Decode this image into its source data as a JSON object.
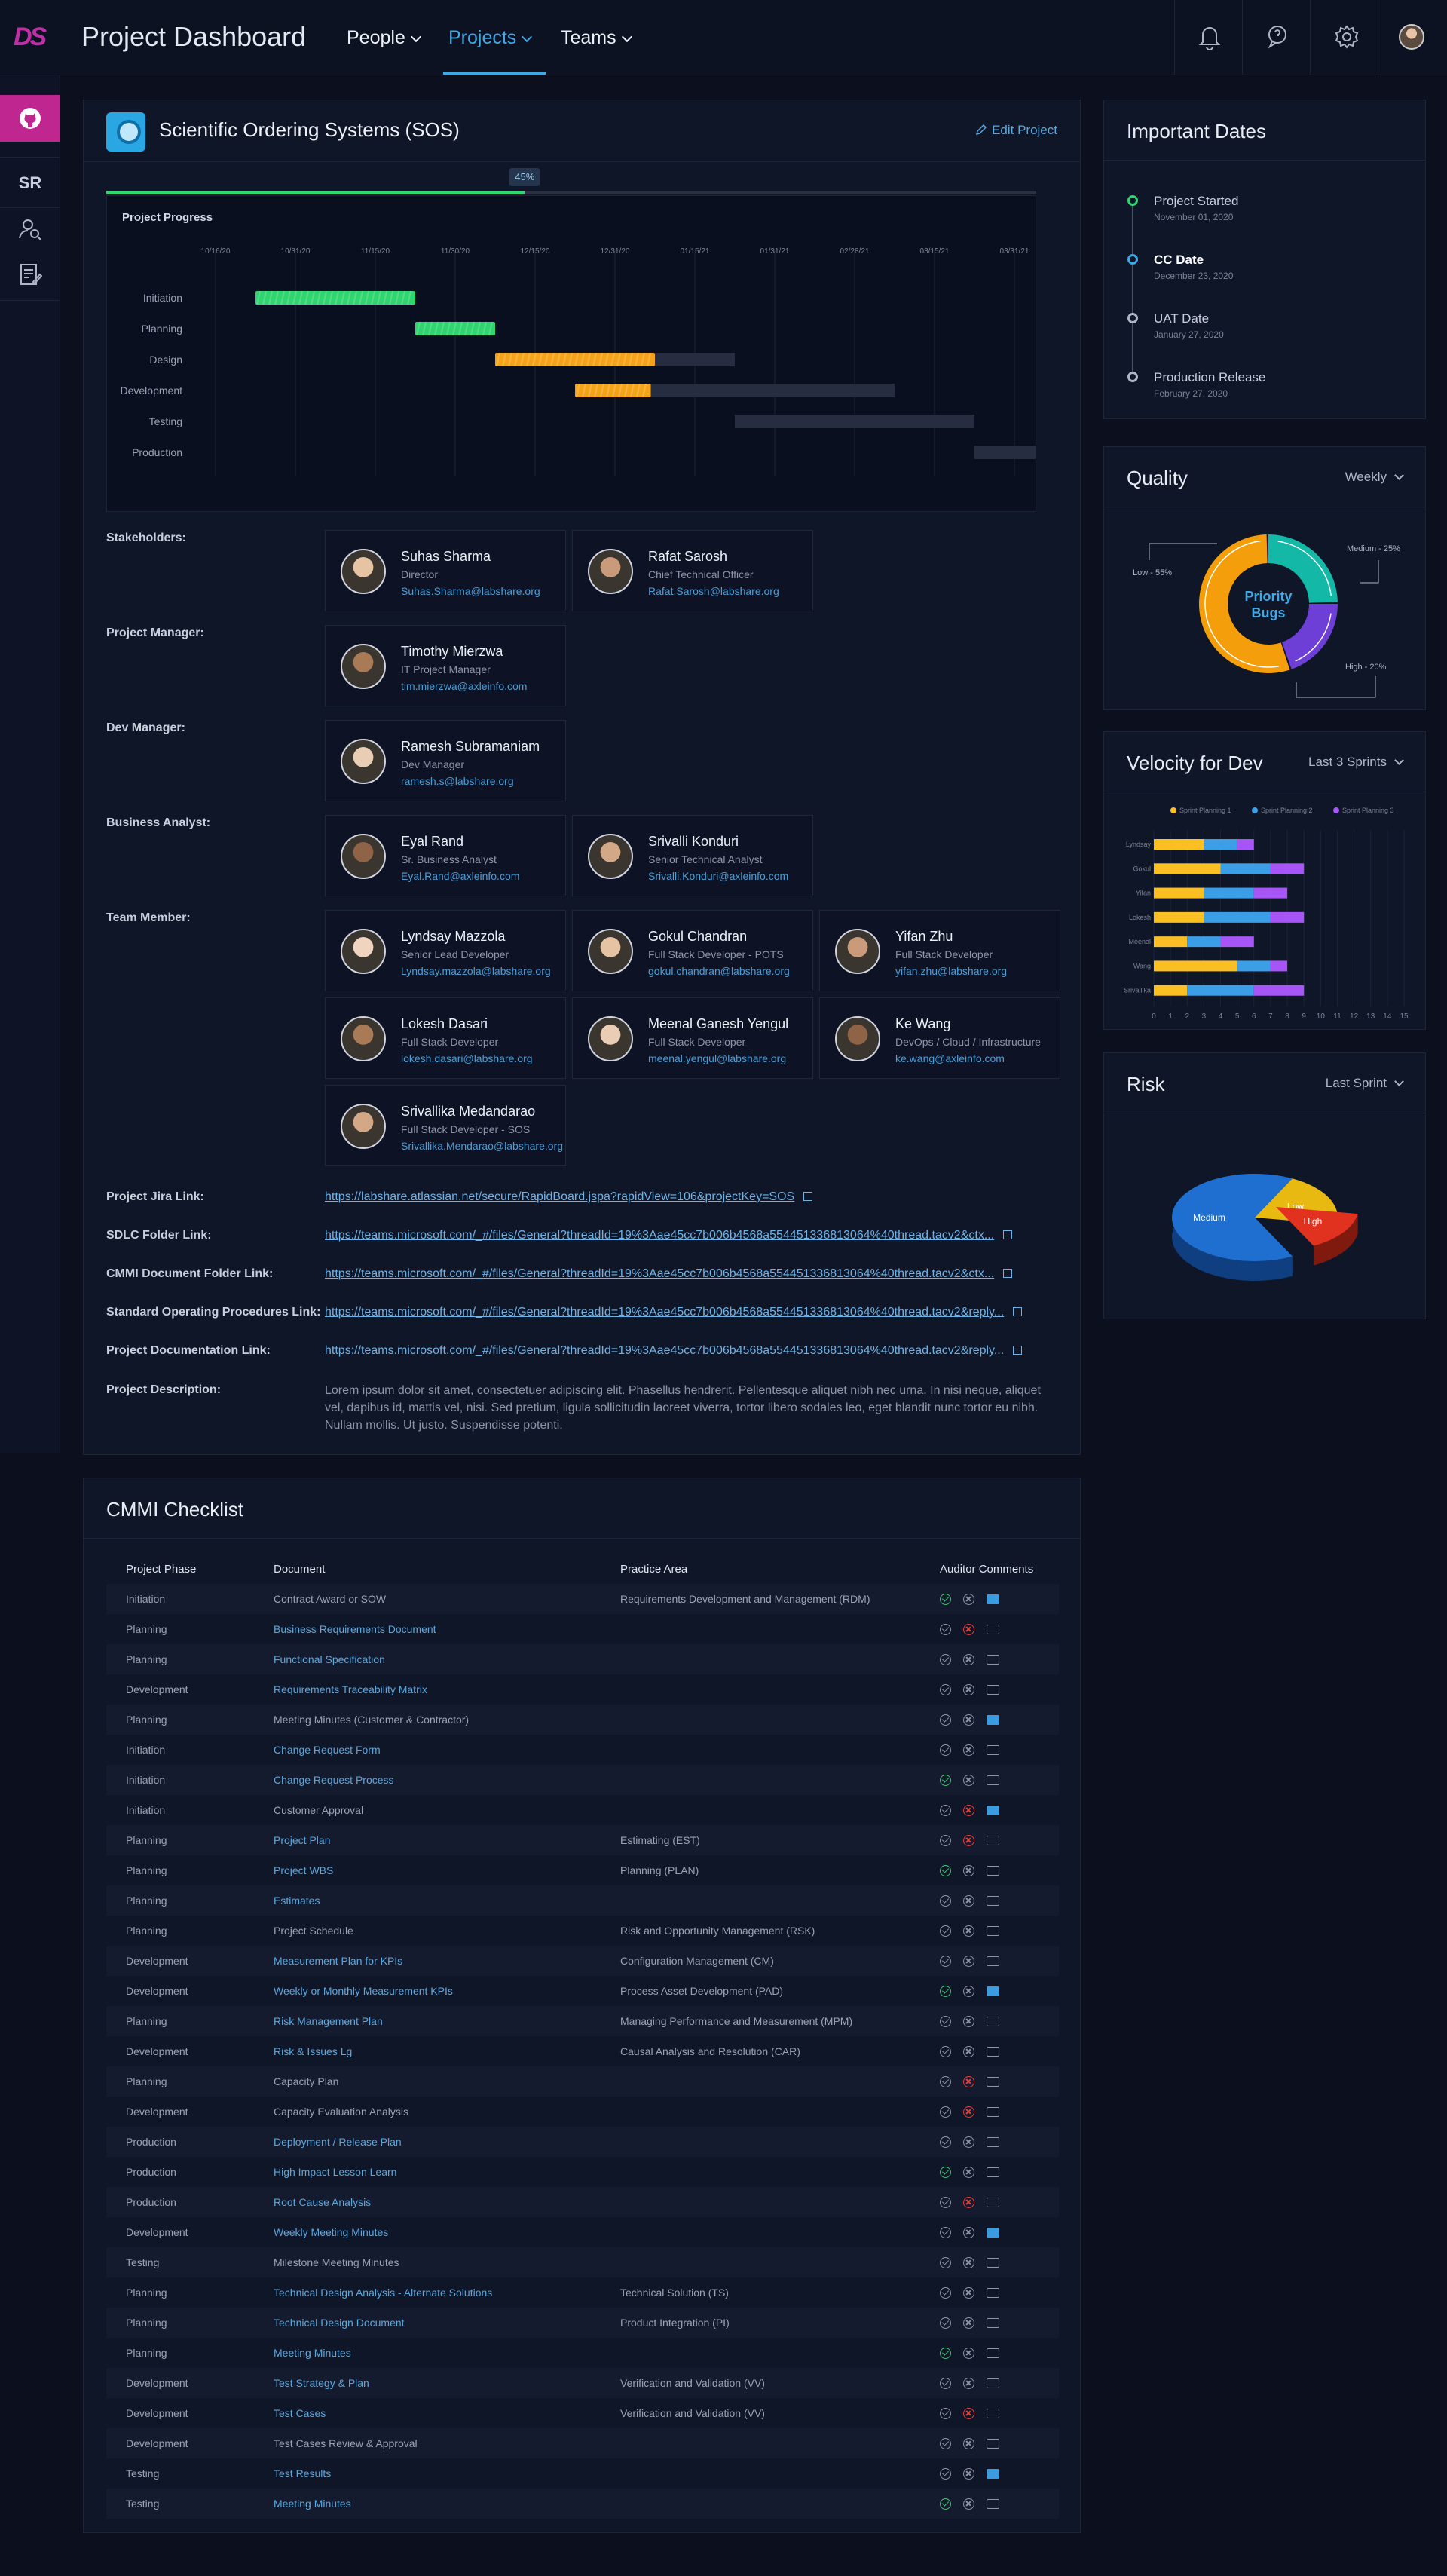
{
  "app": {
    "logo": "DS",
    "title": "Project Dashboard"
  },
  "nav": [
    {
      "label": "People",
      "active": false
    },
    {
      "label": "Projects",
      "active": true
    },
    {
      "label": "Teams",
      "active": false
    }
  ],
  "header_icons": [
    "bell-icon",
    "chat-icon",
    "gear-icon",
    "user-avatar"
  ],
  "sidebar": {
    "initials": "SR",
    "items": [
      "github-icon",
      "user-search-icon",
      "document-edit-icon"
    ]
  },
  "project": {
    "title": "Scientific Ordering Systems (SOS)",
    "edit_label": "Edit Project",
    "progress_percent": 45,
    "progress_label": "45%"
  },
  "gantt": {
    "title": "Project Progress",
    "dates": [
      "10/16/20",
      "10/31/20",
      "11/15/20",
      "11/30/20",
      "12/15/20",
      "12/31/20",
      "01/15/21",
      "01/31/21",
      "02/28/21",
      "03/15/21",
      "03/31/21"
    ],
    "phases": [
      {
        "name": "Initiation",
        "start": 0.5,
        "done": 2.0,
        "planned": 0,
        "status": "complete"
      },
      {
        "name": "Planning",
        "start": 2.5,
        "done": 1.0,
        "planned": 0,
        "status": "complete"
      },
      {
        "name": "Design",
        "start": 3.5,
        "done": 2.0,
        "planned": 1.0,
        "status": "in-progress"
      },
      {
        "name": "Development",
        "start": 4.5,
        "done": 0.95,
        "planned": 3.05,
        "status": "in-progress"
      },
      {
        "name": "Testing",
        "start": 6.5,
        "done": 0,
        "planned": 3.0,
        "status": "not-started"
      },
      {
        "name": "Production",
        "start": 9.5,
        "done": 0,
        "planned": 0.9,
        "status": "not-started"
      }
    ]
  },
  "sections": {
    "stakeholders": "Stakeholders:",
    "project_manager": "Project Manager:",
    "dev_manager": "Dev Manager:",
    "business_analyst": "Business Analyst:",
    "team_member": "Team Member:"
  },
  "people": {
    "stakeholders": [
      {
        "name": "Suhas Sharma",
        "role": "Director",
        "email": "Suhas.Sharma@labshare.org"
      },
      {
        "name": "Rafat Sarosh",
        "role": "Chief Technical Officer",
        "email": "Rafat.Sarosh@labshare.org"
      }
    ],
    "project_manager": [
      {
        "name": "Timothy Mierzwa",
        "role": "IT Project Manager",
        "email": "tim.mierzwa@axleinfo.com"
      }
    ],
    "dev_manager": [
      {
        "name": "Ramesh Subramaniam",
        "role": "Dev Manager",
        "email": "ramesh.s@labshare.org"
      }
    ],
    "business_analyst": [
      {
        "name": "Eyal Rand",
        "role": "Sr. Business Analyst",
        "email": "Eyal.Rand@axleinfo.com"
      },
      {
        "name": "Srivalli Konduri",
        "role": "Senior Technical Analyst",
        "email": "Srivalli.Konduri@axleinfo.com"
      }
    ],
    "team": [
      {
        "name": "Lyndsay Mazzola",
        "role": "Senior Lead Developer",
        "email": "Lyndsay.mazzola@labshare.org"
      },
      {
        "name": "Gokul Chandran",
        "role": "Full Stack Developer - POTS",
        "email": "gokul.chandran@labshare.org"
      },
      {
        "name": "Yifan Zhu",
        "role": "Full Stack Developer",
        "email": "yifan.zhu@labshare.org"
      },
      {
        "name": "Lokesh Dasari",
        "role": "Full Stack Developer",
        "email": "lokesh.dasari@labshare.org"
      },
      {
        "name": "Meenal Ganesh Yengul",
        "role": "Full Stack Developer",
        "email": "meenal.yengul@labshare.org"
      },
      {
        "name": "Ke Wang",
        "role": "DevOps / Cloud / Infrastructure",
        "email": "ke.wang@axleinfo.com"
      },
      {
        "name": "Srivallika Medandarao",
        "role": "Full Stack Developer - SOS",
        "email": "Srivallika.Mendarao@labshare.org"
      }
    ]
  },
  "links": [
    {
      "label": "Project Jira Link:",
      "url": "https://labshare.atlassian.net/secure/RapidBoard.jspa?rapidView=106&projectKey=SOS"
    },
    {
      "label": "SDLC Folder Link:",
      "url": "https://teams.microsoft.com/_#/files/General?threadId=19%3Aae45cc7b006b4568a554451336813064%40thread.tacv2&ctx..."
    },
    {
      "label": "CMMI Document Folder Link:",
      "url": "https://teams.microsoft.com/_#/files/General?threadId=19%3Aae45cc7b006b4568a554451336813064%40thread.tacv2&ctx..."
    },
    {
      "label": "Standard Operating Procedures Link:",
      "url": "https://teams.microsoft.com/_#/files/General?threadId=19%3Aae45cc7b006b4568a554451336813064%40thread.tacv2&reply..."
    },
    {
      "label": "Project Documentation Link:",
      "url": "https://teams.microsoft.com/_#/files/General?threadId=19%3Aae45cc7b006b4568a554451336813064%40thread.tacv2&reply..."
    }
  ],
  "description": {
    "label": "Project Description:",
    "text": "Lorem ipsum dolor sit amet, consectetuer adipiscing elit. Phasellus hendrerit. Pellentesque aliquet nibh nec urna. In nisi neque, aliquet vel, dapibus id, mattis vel, nisi. Sed pretium, ligula sollicitudin laoreet viverra, tortor libero sodales leo, eget blandit nunc tortor eu nibh. Nullam mollis. Ut justo. Suspendisse potenti."
  },
  "important_dates": {
    "title": "Important Dates",
    "items": [
      {
        "title": "Project Started",
        "date": "November 01, 2020",
        "state": "done"
      },
      {
        "title": "CC Date",
        "date": "December 23, 2020",
        "state": "current"
      },
      {
        "title": "UAT Date",
        "date": "January 27, 2020",
        "state": "upcoming"
      },
      {
        "title": "Production Release",
        "date": "February 27, 2020",
        "state": "upcoming"
      }
    ]
  },
  "quality": {
    "title": "Quality",
    "dropdown": "Weekly",
    "center_label": "Priority Bugs",
    "slices": [
      {
        "name": "Low",
        "value": 55,
        "label": "Low - 55%",
        "color": "#f59e0b"
      },
      {
        "name": "Medium",
        "value": 25,
        "label": "Medium - 25%",
        "color": "#14b8a6"
      },
      {
        "name": "High",
        "value": 20,
        "label": "High - 20%",
        "color": "#6d3fd6"
      }
    ]
  },
  "velocity": {
    "title": "Velocity for Dev",
    "dropdown": "Last 3 Sprints"
  },
  "risk": {
    "title": "Risk",
    "dropdown": "Last Sprint"
  },
  "chart_data": [
    {
      "type": "bar",
      "stacked": true,
      "orientation": "horizontal",
      "categories": [
        "Lyndsay",
        "Gokul",
        "Yifan",
        "Lokesh",
        "Meenal",
        "Wang",
        "Srivallika"
      ],
      "series": [
        {
          "name": "Sprint Planning 1",
          "color": "#fbbf24",
          "values": [
            3,
            4,
            3,
            3,
            2,
            5,
            2
          ]
        },
        {
          "name": "Sprint Planning 2",
          "color": "#3b9fe8",
          "values": [
            2,
            3,
            3,
            4,
            2,
            2,
            4
          ]
        },
        {
          "name": "Sprint Planning 3",
          "color": "#a855f7",
          "values": [
            1,
            2,
            2,
            2,
            2,
            1,
            3
          ]
        }
      ],
      "xlim": [
        0,
        15
      ],
      "xticks": [
        0,
        1,
        2,
        3,
        4,
        5,
        6,
        7,
        8,
        9,
        10,
        11,
        12,
        13,
        14,
        15
      ],
      "legend": "top",
      "grid": true
    },
    {
      "type": "pie",
      "style": "3d",
      "slices": [
        {
          "label": "Medium",
          "value": 65,
          "color": "#1e6fd0"
        },
        {
          "label": "Low",
          "value": 20,
          "color": "#e8b910"
        },
        {
          "label": "High",
          "value": 15,
          "color": "#e0321e"
        }
      ]
    }
  ],
  "checklist": {
    "title": "CMMI Checklist",
    "columns": [
      "Project Phase",
      "Document",
      "Practice Area",
      "Auditor Comments"
    ],
    "rows": [
      {
        "phase": "Initiation",
        "doc": "Contract Award or SOW",
        "link": false,
        "area": "Requirements Development and Management (RDM)",
        "check": "ok",
        "x": "plain",
        "comment": true
      },
      {
        "phase": "Planning",
        "doc": "Business Requirements Document",
        "link": true,
        "area": "",
        "check": "plain",
        "x": "bad",
        "comment": false
      },
      {
        "phase": "Planning",
        "doc": "Functional Specification",
        "link": true,
        "area": "",
        "check": "plain",
        "x": "plain",
        "comment": false
      },
      {
        "phase": "Development",
        "doc": "Requirements Traceability Matrix",
        "link": true,
        "area": "",
        "check": "plain",
        "x": "plain",
        "comment": false
      },
      {
        "phase": "Planning",
        "doc": "Meeting Minutes (Customer & Contractor)",
        "link": false,
        "area": "",
        "check": "plain",
        "x": "plain",
        "comment": true
      },
      {
        "phase": "Initiation",
        "doc": "Change Request Form",
        "link": true,
        "area": "",
        "check": "plain",
        "x": "plain",
        "comment": false
      },
      {
        "phase": "Initiation",
        "doc": "Change Request Process",
        "link": true,
        "area": "",
        "check": "ok",
        "x": "plain",
        "comment": false
      },
      {
        "phase": "Initiation",
        "doc": "Customer Approval",
        "link": false,
        "area": "",
        "check": "plain",
        "x": "bad",
        "comment": true
      },
      {
        "phase": "Planning",
        "doc": "Project Plan",
        "link": true,
        "area": "Estimating (EST)",
        "check": "plain",
        "x": "bad",
        "comment": false
      },
      {
        "phase": "Planning",
        "doc": "Project WBS",
        "link": true,
        "area": "Planning (PLAN)",
        "check": "ok",
        "x": "plain",
        "comment": false
      },
      {
        "phase": "Planning",
        "doc": "Estimates",
        "link": true,
        "area": "",
        "check": "plain",
        "x": "plain",
        "comment": false
      },
      {
        "phase": "Planning",
        "doc": "Project Schedule",
        "link": false,
        "area": "Risk and Opportunity Management (RSK)",
        "check": "plain",
        "x": "plain",
        "comment": false
      },
      {
        "phase": "Development",
        "doc": "Measurement Plan for KPIs",
        "link": true,
        "area": "Configuration Management (CM)",
        "check": "plain",
        "x": "plain",
        "comment": false
      },
      {
        "phase": "Development",
        "doc": "Weekly or Monthly Measurement KPIs",
        "link": true,
        "area": "Process Asset Development (PAD)",
        "check": "ok",
        "x": "plain",
        "comment": true
      },
      {
        "phase": "Planning",
        "doc": "Risk Management Plan",
        "link": true,
        "area": "Managing Performance and Measurement (MPM)",
        "check": "plain",
        "x": "plain",
        "comment": false
      },
      {
        "phase": "Development",
        "doc": "Risk & Issues Lg",
        "link": true,
        "area": "Causal Analysis and Resolution (CAR)",
        "check": "plain",
        "x": "plain",
        "comment": false
      },
      {
        "phase": "Planning",
        "doc": "Capacity Plan",
        "link": false,
        "area": "",
        "check": "plain",
        "x": "bad",
        "comment": false
      },
      {
        "phase": "Development",
        "doc": "Capacity Evaluation Analysis",
        "link": false,
        "area": "",
        "check": "plain",
        "x": "bad",
        "comment": false
      },
      {
        "phase": "Production",
        "doc": "Deployment / Release Plan",
        "link": true,
        "area": "",
        "check": "plain",
        "x": "plain",
        "comment": false
      },
      {
        "phase": "Production",
        "doc": "High Impact Lesson Learn",
        "link": true,
        "area": "",
        "check": "ok",
        "x": "plain",
        "comment": false
      },
      {
        "phase": "Production",
        "doc": "Root Cause Analysis",
        "link": true,
        "area": "",
        "check": "plain",
        "x": "bad",
        "comment": false
      },
      {
        "phase": "Development",
        "doc": "Weekly Meeting Minutes",
        "link": true,
        "area": "",
        "check": "plain",
        "x": "plain",
        "comment": true
      },
      {
        "phase": "Testing",
        "doc": "Milestone Meeting Minutes",
        "link": false,
        "area": "",
        "check": "plain",
        "x": "plain",
        "comment": false
      },
      {
        "phase": "Planning",
        "doc": "Technical Design Analysis - Alternate Solutions",
        "link": true,
        "area": "Technical Solution (TS)",
        "check": "plain",
        "x": "plain",
        "comment": false
      },
      {
        "phase": "Planning",
        "doc": "Technical Design Document",
        "link": true,
        "area": "Product Integration (PI)",
        "check": "plain",
        "x": "plain",
        "comment": false
      },
      {
        "phase": "Planning",
        "doc": "Meeting Minutes",
        "link": true,
        "area": "",
        "check": "ok",
        "x": "plain",
        "comment": false
      },
      {
        "phase": "Development",
        "doc": "Test Strategy & Plan",
        "link": true,
        "area": "Verification and Validation (VV)",
        "check": "plain",
        "x": "plain",
        "comment": false
      },
      {
        "phase": "Development",
        "doc": "Test Cases",
        "link": true,
        "area": "Verification and Validation (VV)",
        "check": "plain",
        "x": "bad",
        "comment": false
      },
      {
        "phase": "Development",
        "doc": "Test Cases Review & Approval",
        "link": false,
        "area": "",
        "check": "plain",
        "x": "plain",
        "comment": false
      },
      {
        "phase": "Testing",
        "doc": "Test Results",
        "link": true,
        "area": "",
        "check": "plain",
        "x": "plain",
        "comment": true
      },
      {
        "phase": "Testing",
        "doc": "Meeting Minutes",
        "link": true,
        "area": "",
        "check": "ok",
        "x": "plain",
        "comment": false
      }
    ]
  }
}
